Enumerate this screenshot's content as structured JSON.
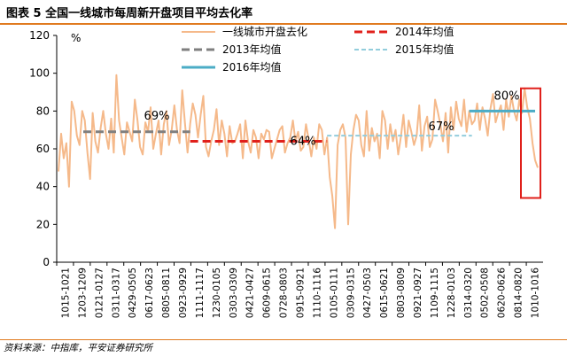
{
  "figure_label": "图表 5   全国一线城市每周新开盘项目平均去化率",
  "source": "资料来源：中指库，平安证券研究所",
  "chart_data": {
    "type": "line",
    "title": "全国一线城市每周新开盘项目平均去化率",
    "unit_label": "%",
    "ylim": [
      0,
      120
    ],
    "yticks": [
      0,
      20,
      40,
      60,
      80,
      100,
      120
    ],
    "grid": false,
    "legend_position": "top",
    "x_tick_labels": [
      "1015-1021",
      "1203-1209",
      "0121-0127",
      "0311-0317",
      "0429-0505",
      "0617-0623",
      "0805-0811",
      "0923-0929",
      "1111-1117",
      "1230-0105",
      "0303-0309",
      "0421-0427",
      "0609-0615",
      "0728-0803",
      "0915-0921",
      "1110-1116",
      "0105-0111",
      "0309-0315",
      "0427-0503",
      "0615-0621",
      "0803-0809",
      "0921-0927",
      "1109-1115",
      "1228-0103",
      "0314-0320",
      "0502-0508",
      "0620-0626",
      "0814-0820",
      "1010-1016"
    ],
    "series": [
      {
        "name": "一线城市开盘去化",
        "color": "#f5b98a",
        "kind": "weekly",
        "values": [
          48,
          68,
          55,
          63,
          40,
          85,
          80,
          67,
          62,
          80,
          75,
          58,
          44,
          79,
          64,
          58,
          71,
          80,
          68,
          60,
          76,
          58,
          99,
          75,
          66,
          57,
          74,
          69,
          64,
          86,
          75,
          61,
          57,
          74,
          69,
          82,
          60,
          68,
          75,
          57,
          73,
          80,
          62,
          70,
          83,
          70,
          63,
          91,
          74,
          58,
          73,
          84,
          78,
          66,
          78,
          88,
          61,
          56,
          64,
          70,
          81,
          62,
          75,
          68,
          56,
          72,
          63,
          64,
          68,
          73,
          55,
          75,
          64,
          58,
          70,
          66,
          55,
          68,
          65,
          70,
          69,
          55,
          60,
          65,
          70,
          72,
          58,
          63,
          66,
          75,
          64,
          69,
          59,
          61,
          73,
          65,
          56,
          66,
          60,
          73,
          70,
          57,
          66,
          45,
          35,
          18,
          62,
          70,
          73,
          66,
          20,
          57,
          70,
          78,
          75,
          62,
          56,
          80,
          59,
          71,
          64,
          68,
          55,
          80,
          75,
          60,
          73,
          64,
          70,
          57,
          66,
          78,
          61,
          75,
          69,
          62,
          67,
          83,
          59,
          72,
          77,
          61,
          65,
          86,
          80,
          73,
          64,
          79,
          58,
          82,
          70,
          85,
          76,
          72,
          86,
          69,
          80,
          73,
          75,
          84,
          70,
          82,
          76,
          67,
          81,
          89,
          74,
          79,
          83,
          70,
          86,
          77,
          88,
          80,
          75,
          86,
          79,
          92,
          82,
          76,
          63,
          54,
          50
        ]
      },
      {
        "name": "2013年均值",
        "value": 69,
        "label": "69%",
        "color": "#7f7f7f"
      },
      {
        "name": "2014年均值",
        "value": 64,
        "label": "64%",
        "color": "#e0201b"
      },
      {
        "name": "2015年均值",
        "value": 67,
        "label": "67%",
        "color": "#92cddc"
      },
      {
        "name": "2016年均值",
        "value": 80,
        "label": "80%",
        "color": "#4bacc6"
      }
    ],
    "annotation": "红框标注最新一周数据"
  }
}
